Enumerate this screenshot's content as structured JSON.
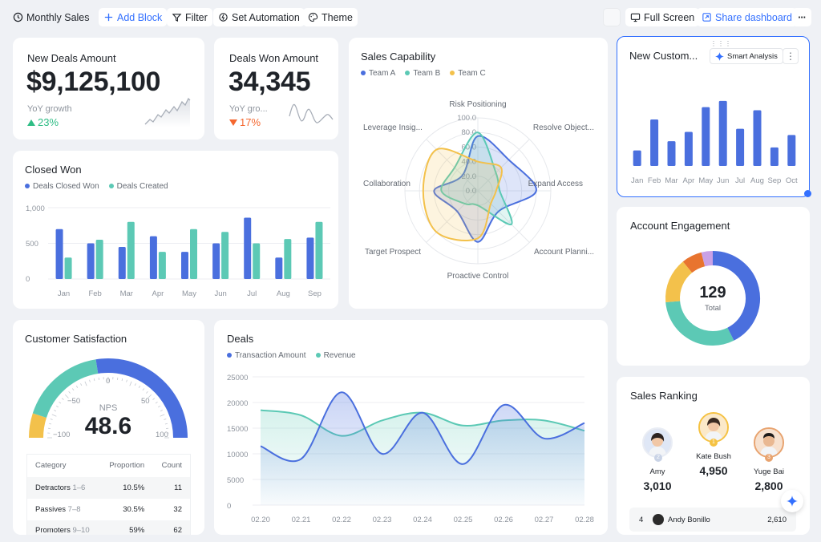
{
  "toolbar": {
    "title": "Monthly Sales",
    "add_block": "Add Block",
    "filter": "Filter",
    "set_automation": "Set Automation",
    "theme": "Theme",
    "full_screen": "Full Screen",
    "share": "Share dashboard",
    "more": "···"
  },
  "new_deals": {
    "title": "New Deals Amount",
    "value": "$9,125,100",
    "growth_label": "YoY growth",
    "growth": "23%",
    "growth_color": "#2ebd85"
  },
  "deals_won": {
    "title": "Deals Won Amount",
    "value": "34,345",
    "growth_label": "YoY gro...",
    "growth": "17%",
    "growth_color": "#f5672f"
  },
  "closed_won": {
    "title": "Closed Won",
    "legend": [
      "Deals Closed Won",
      "Deals Created"
    ],
    "yticks": [
      "1,000",
      "500",
      "0"
    ]
  },
  "sales_capability": {
    "title": "Sales Capability",
    "legend": [
      "Team A",
      "Team B",
      "Team C"
    ],
    "axes": [
      "Risk Positioning",
      "Resolve Object...",
      "Expand Access",
      "Account Planni...",
      "Proactive Control",
      "Target Prospect",
      "Collaboration",
      "Leverage Insig..."
    ],
    "rticks": [
      "100.0",
      "80.0",
      "60.0",
      "40.0",
      "20.0",
      "0.0"
    ]
  },
  "new_customers": {
    "title": "New Custom...",
    "smart": "Smart Analysis",
    "more": "⋮"
  },
  "account_engagement": {
    "title": "Account Engagement",
    "total": "129",
    "total_label": "Total"
  },
  "customer_satisfaction": {
    "title": "Customer Satisfaction",
    "nps_label": "NPS",
    "nps": "48.6",
    "nps_value": 48.6,
    "ticks": [
      "−100",
      "−50",
      "0",
      "50",
      "100"
    ],
    "table_headers": [
      "Category",
      "Proportion",
      "Count"
    ],
    "rows": [
      {
        "cat": "Detractors",
        "range": "1–6",
        "prop": "10.5%",
        "count": "11"
      },
      {
        "cat": "Passives",
        "range": "7–8",
        "prop": "30.5%",
        "count": "32"
      },
      {
        "cat": "Promoters",
        "range": "9–10",
        "prop": "59%",
        "count": "62"
      }
    ]
  },
  "deals": {
    "title": "Deals",
    "legend": [
      "Transaction Amount",
      "Revenue"
    ],
    "yticks": [
      "25000",
      "20000",
      "15000",
      "10000",
      "5000",
      "0"
    ]
  },
  "sales_ranking": {
    "title": "Sales Ranking",
    "top": [
      {
        "name": "Amy",
        "value": "3,010",
        "rank": "2"
      },
      {
        "name": "Kate Bush",
        "value": "4,950",
        "rank": "1"
      },
      {
        "name": "Yuge Bai",
        "value": "2,800",
        "rank": "3"
      }
    ],
    "row": {
      "rank": "4",
      "name": "Andy Bonillo",
      "value": "2,610"
    }
  },
  "colors": {
    "blue": "#4a6fde",
    "teal": "#5cc9b5",
    "yellow": "#f3c14b",
    "orange": "#e8742f",
    "purple": "#c9a1e6",
    "accent": "#3370ff"
  },
  "chart_data": [
    {
      "type": "bar",
      "title": "Closed Won",
      "categories": [
        "Jan",
        "Feb",
        "Mar",
        "Apr",
        "May",
        "Jun",
        "Jul",
        "Aug",
        "Sep"
      ],
      "series": [
        {
          "name": "Deals Closed Won",
          "values": [
            700,
            500,
            450,
            600,
            380,
            500,
            860,
            300,
            580
          ]
        },
        {
          "name": "Deals Created",
          "values": [
            300,
            550,
            800,
            380,
            700,
            660,
            500,
            560,
            800
          ]
        }
      ],
      "ylim": [
        0,
        1000
      ]
    },
    {
      "type": "radar",
      "title": "Sales Capability",
      "axes": [
        "Risk Positioning",
        "Resolve Object...",
        "Expand Access",
        "Account Planni...",
        "Proactive Control",
        "Target Prospect",
        "Collaboration",
        "Leverage Insig..."
      ],
      "series": [
        {
          "name": "Team A",
          "values": [
            75,
            60,
            80,
            40,
            70,
            40,
            60,
            30
          ]
        },
        {
          "name": "Team B",
          "values": [
            80,
            35,
            30,
            65,
            20,
            25,
            50,
            45
          ]
        },
        {
          "name": "Team C",
          "values": [
            40,
            45,
            25,
            25,
            65,
            80,
            75,
            80
          ]
        }
      ],
      "rlim": [
        0,
        100
      ]
    },
    {
      "type": "bar",
      "title": "New Custom...",
      "categories": [
        "Jan",
        "Feb",
        "Mar",
        "Apr",
        "May",
        "Jun",
        "Jul",
        "Aug",
        "Sep",
        "Oct"
      ],
      "values": [
        25,
        75,
        40,
        55,
        95,
        105,
        60,
        90,
        30,
        50
      ]
    },
    {
      "type": "pie",
      "title": "Account Engagement",
      "total": 129,
      "values": [
        55,
        40,
        20,
        9,
        5
      ]
    },
    {
      "type": "line",
      "title": "Deals",
      "x": [
        "02.20",
        "02.21",
        "02.22",
        "02.23",
        "02.24",
        "02.25",
        "02.26",
        "02.27",
        "02.28"
      ],
      "series": [
        {
          "name": "Transaction Amount",
          "values": [
            11500,
            9000,
            22000,
            10000,
            18000,
            8000,
            19500,
            13000,
            16000
          ]
        },
        {
          "name": "Revenue",
          "values": [
            18500,
            17500,
            13500,
            16500,
            18000,
            15500,
            16500,
            16500,
            14500
          ]
        }
      ],
      "ylim": [
        0,
        25000
      ]
    }
  ]
}
